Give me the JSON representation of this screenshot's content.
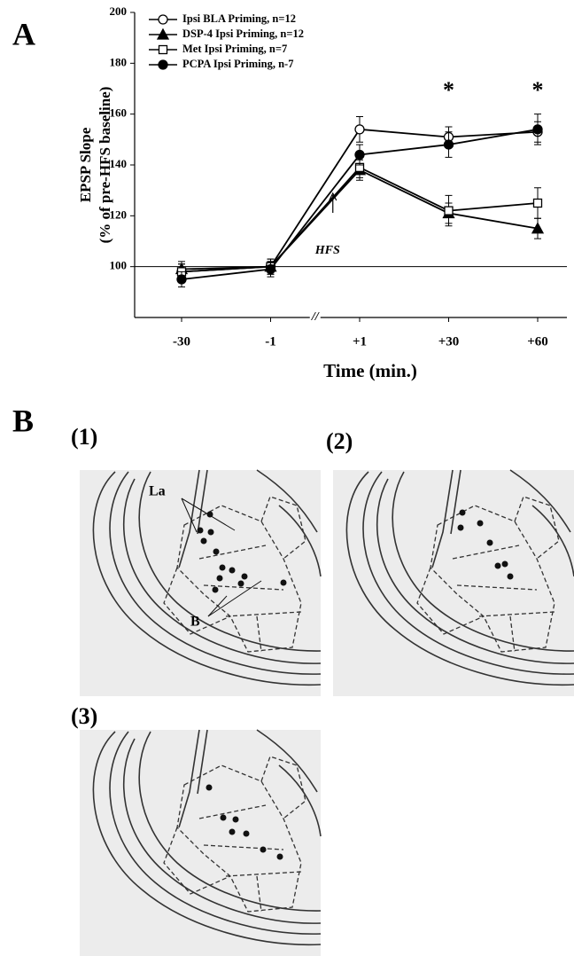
{
  "chart_data": {
    "type": "line",
    "ylabel": [
      "EPSP Slope",
      "(% of pre-HFS baseline)"
    ],
    "xlabel": "Time (min.)",
    "categories": [
      "-30",
      "-1",
      "+1",
      "+30",
      "+60"
    ],
    "axis_break": "//",
    "ylim": [
      80,
      200
    ],
    "yticks": [
      100,
      120,
      140,
      160,
      180,
      200
    ],
    "reference_line": 100,
    "series": [
      {
        "name": "Ipsi BLA Priming, n=12",
        "color": "#000000",
        "marker": "open-circle",
        "values": [
          98,
          100,
          154,
          151,
          153
        ],
        "errors": [
          3,
          2,
          5,
          4,
          4
        ]
      },
      {
        "name": "DSP-4 Ipsi Priming, n=12",
        "color": "#000000",
        "marker": "filled-triangle",
        "values": [
          99,
          100,
          138,
          121,
          115
        ],
        "errors": [
          3,
          3,
          4,
          4,
          4
        ]
      },
      {
        "name": "Met Ipsi Priming, n=7",
        "color": "#000000",
        "marker": "open-square",
        "values": [
          98,
          100,
          139,
          122,
          125
        ],
        "errors": [
          3,
          3,
          4,
          6,
          6
        ]
      },
      {
        "name": "PCPA Ipsi Priming, n-7",
        "color": "#000000",
        "marker": "filled-circle",
        "values": [
          95,
          99,
          144,
          148,
          154
        ],
        "errors": [
          3,
          3,
          4,
          5,
          6
        ]
      }
    ],
    "annotations": [
      {
        "text": "*",
        "category": "+30"
      },
      {
        "text": "*",
        "category": "+60"
      }
    ],
    "event_label": "HFS"
  },
  "figure": {
    "panel_a_label": "A",
    "panel_b_label": "B",
    "sections": [
      "(1)",
      "(2)",
      "(3)"
    ],
    "section_labels": [
      "La",
      "B"
    ]
  }
}
